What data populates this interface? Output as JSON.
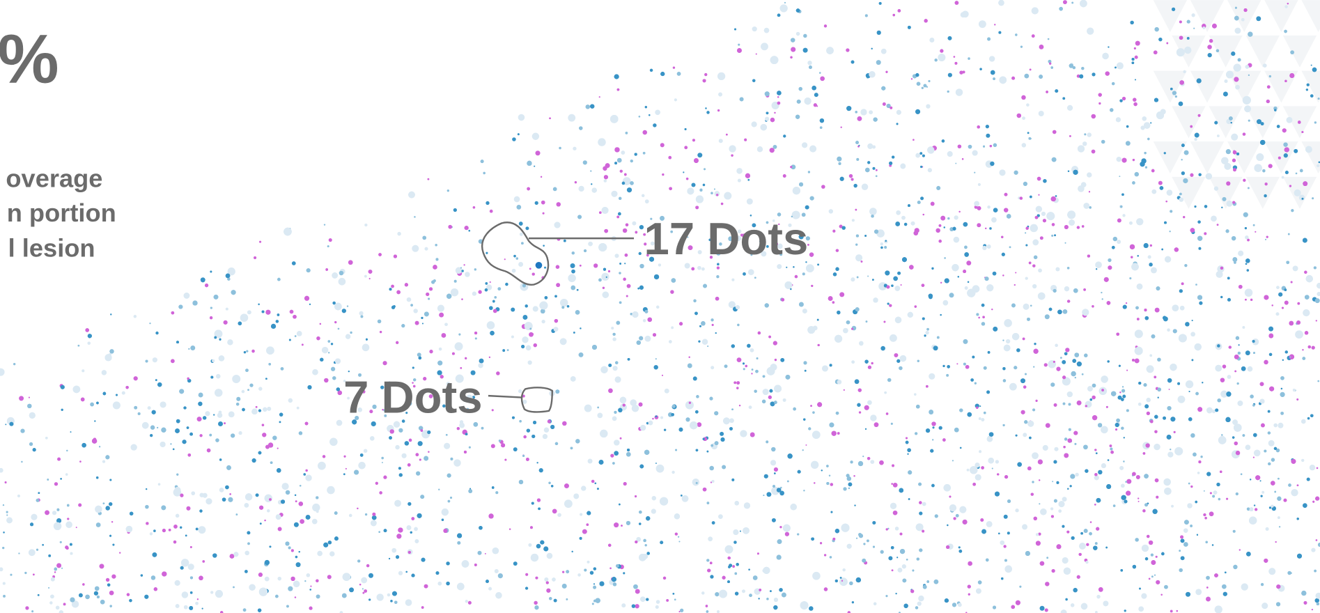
{
  "header": {
    "percent": "%",
    "lines": [
      "overage",
      "n portion",
      "l lesion"
    ]
  },
  "annotations": [
    {
      "label": "17 Dots"
    },
    {
      "label": "7 Dots"
    }
  ]
}
